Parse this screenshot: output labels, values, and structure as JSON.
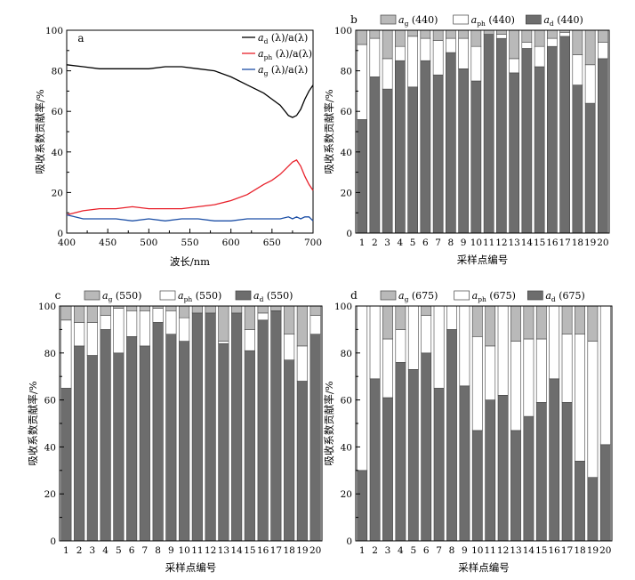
{
  "chart_data": [
    {
      "type": "line",
      "panel_label": "a",
      "xlabel": "波长/nm",
      "ylabel": "吸收系数贡献率/%",
      "xlim": [
        400,
        700
      ],
      "ylim": [
        0,
        100
      ],
      "xticks": [
        "400",
        "450",
        "500",
        "550",
        "600",
        "650",
        "700"
      ],
      "yticks": [
        "0",
        "20",
        "40",
        "60",
        "80",
        "100"
      ],
      "legend_position": "top-right",
      "x": [
        400,
        420,
        440,
        460,
        480,
        500,
        520,
        540,
        560,
        580,
        600,
        620,
        640,
        650,
        660,
        670,
        675,
        680,
        685,
        690,
        695,
        700
      ],
      "series": [
        {
          "name": "a_d(λ)/a(λ)",
          "main": "a",
          "sub": "d",
          "rest": "(λ)/a(λ)",
          "color": "#000000",
          "values": [
            83,
            82,
            81,
            81,
            81,
            81,
            82,
            82,
            81,
            80,
            77,
            73,
            69,
            66,
            63,
            58,
            57,
            58,
            61,
            66,
            70,
            73
          ]
        },
        {
          "name": "a_ph(λ)/a(λ)",
          "main": "a",
          "sub": "ph",
          "rest": "(λ)/a(λ)",
          "color": "#e8202a",
          "values": [
            9,
            11,
            12,
            12,
            13,
            12,
            12,
            12,
            13,
            14,
            16,
            19,
            24,
            26,
            29,
            33,
            35,
            36,
            33,
            28,
            24,
            21
          ]
        },
        {
          "name": "a_g(λ)/a(λ)",
          "main": "a",
          "sub": "g",
          "rest": "(λ)/a(λ)",
          "color": "#1c4fa6",
          "values": [
            9,
            7,
            7,
            7,
            6,
            7,
            6,
            7,
            7,
            6,
            6,
            7,
            7,
            7,
            7,
            8,
            7,
            8,
            7,
            8,
            8,
            6
          ]
        }
      ]
    },
    {
      "type": "bar",
      "stacked": true,
      "panel_label": "b",
      "xlabel": "采样点编号",
      "ylabel": "吸收系数贡献率/%",
      "ylim": [
        0,
        100
      ],
      "yticks": [
        "0",
        "20",
        "40",
        "60",
        "80",
        "100"
      ],
      "legend_position": "top",
      "categories": [
        "1",
        "2",
        "3",
        "4",
        "5",
        "6",
        "7",
        "8",
        "9",
        "10",
        "11",
        "12",
        "13",
        "14",
        "15",
        "16",
        "17",
        "18",
        "19",
        "20"
      ],
      "series": [
        {
          "name": "a_d(440)",
          "main": "a",
          "sub": "d",
          "wl": "(440)",
          "color": "#6d6d6d",
          "values": [
            56,
            77,
            71,
            85,
            72,
            85,
            78,
            89,
            81,
            75,
            98,
            96,
            79,
            91,
            82,
            92,
            97,
            73,
            64,
            86
          ]
        },
        {
          "name": "a_ph(440)",
          "main": "a",
          "sub": "ph",
          "wl": "(440)",
          "color": "#ffffff",
          "values": [
            37,
            19,
            15,
            7,
            25,
            11,
            17,
            7,
            15,
            17,
            0,
            2,
            7,
            3,
            10,
            4,
            2,
            15,
            19,
            8
          ]
        },
        {
          "name": "a_g(440)",
          "main": "a",
          "sub": "g",
          "wl": "(440)",
          "color": "#b9b9b9",
          "values": [
            7,
            4,
            14,
            8,
            3,
            4,
            5,
            4,
            4,
            8,
            2,
            2,
            14,
            6,
            8,
            4,
            1,
            12,
            17,
            6
          ]
        }
      ]
    },
    {
      "type": "bar",
      "stacked": true,
      "panel_label": "c",
      "xlabel": "采样点编号",
      "ylabel": "吸收系数贡献率/%",
      "ylim": [
        0,
        100
      ],
      "yticks": [
        "0",
        "20",
        "40",
        "60",
        "80",
        "100"
      ],
      "legend_position": "top",
      "categories": [
        "1",
        "2",
        "3",
        "4",
        "5",
        "6",
        "7",
        "8",
        "9",
        "10",
        "11",
        "12",
        "13",
        "14",
        "15",
        "16",
        "17",
        "18",
        "19",
        "20"
      ],
      "series": [
        {
          "name": "a_d(550)",
          "main": "a",
          "sub": "d",
          "wl": "(550)",
          "color": "#6d6d6d",
          "values": [
            65,
            83,
            79,
            90,
            80,
            87,
            83,
            93,
            88,
            85,
            97,
            97,
            84,
            97,
            81,
            94,
            98,
            77,
            68,
            88
          ]
        },
        {
          "name": "a_ph(550)",
          "main": "a",
          "sub": "ph",
          "wl": "(550)",
          "color": "#ffffff",
          "values": [
            29,
            10,
            14,
            6,
            19,
            11,
            15,
            6,
            10,
            10,
            0,
            0,
            1,
            0,
            9,
            3,
            0,
            11,
            15,
            8
          ]
        },
        {
          "name": "a_g(550)",
          "main": "a",
          "sub": "g",
          "wl": "(550)",
          "color": "#b9b9b9",
          "values": [
            6,
            7,
            7,
            4,
            1,
            2,
            2,
            1,
            2,
            5,
            3,
            3,
            15,
            3,
            10,
            3,
            2,
            12,
            17,
            4
          ]
        }
      ]
    },
    {
      "type": "bar",
      "stacked": true,
      "panel_label": "d",
      "xlabel": "采样点编号",
      "ylabel": "吸收系数贡献率/%",
      "ylim": [
        0,
        100
      ],
      "yticks": [
        "0",
        "20",
        "40",
        "60",
        "80",
        "100"
      ],
      "legend_position": "top",
      "categories": [
        "1",
        "2",
        "3",
        "4",
        "5",
        "6",
        "7",
        "8",
        "9",
        "10",
        "11",
        "12",
        "13",
        "14",
        "15",
        "16",
        "17",
        "18",
        "19",
        "20"
      ],
      "series": [
        {
          "name": "a_d(675)",
          "main": "a",
          "sub": "d",
          "wl": "(675)",
          "color": "#6d6d6d",
          "values": [
            30,
            69,
            61,
            76,
            73,
            80,
            65,
            90,
            66,
            47,
            60,
            62,
            47,
            53,
            59,
            69,
            59,
            34,
            27,
            41
          ]
        },
        {
          "name": "a_ph(675)",
          "main": "a",
          "sub": "ph",
          "wl": "(675)",
          "color": "#ffffff",
          "values": [
            70,
            31,
            25,
            14,
            27,
            16,
            35,
            10,
            34,
            40,
            23,
            38,
            38,
            33,
            27,
            31,
            29,
            54,
            58,
            59
          ]
        },
        {
          "name": "a_g(675)",
          "main": "a",
          "sub": "g",
          "wl": "(675)",
          "color": "#b9b9b9",
          "values": [
            0,
            0,
            14,
            10,
            0,
            4,
            0,
            0,
            0,
            13,
            17,
            0,
            15,
            14,
            14,
            0,
            12,
            12,
            15,
            0
          ]
        }
      ]
    }
  ]
}
